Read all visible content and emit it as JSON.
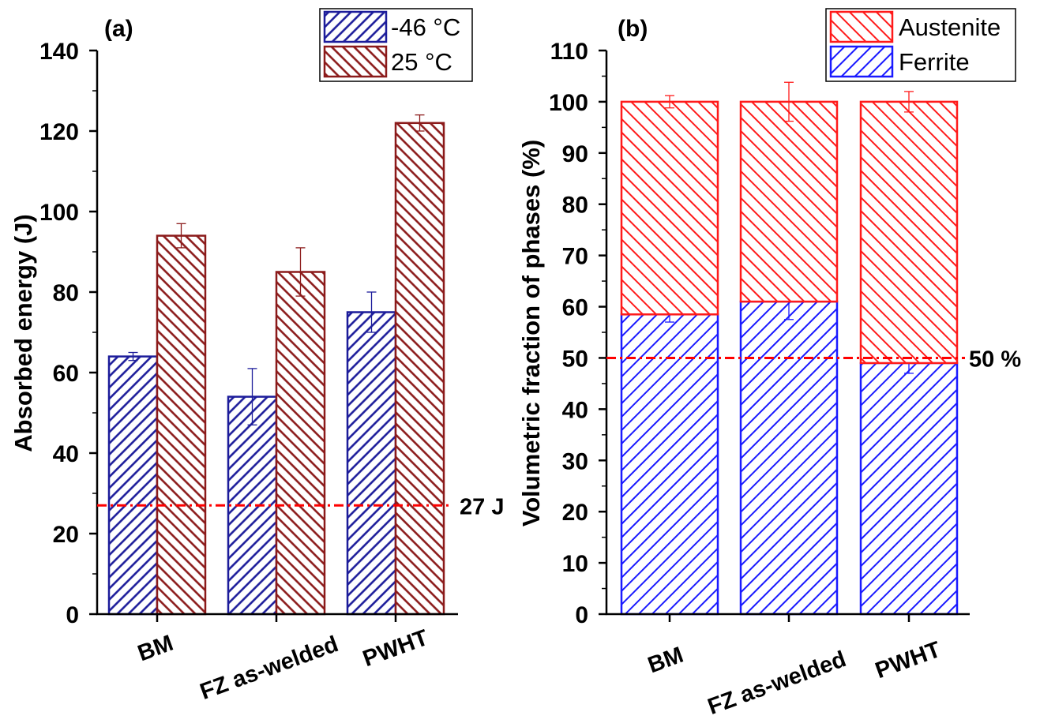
{
  "chart_data": [
    {
      "type": "bar",
      "panel_label": "(a)",
      "categories": [
        "BM",
        "FZ as-welded",
        "PWHT"
      ],
      "ylabel": "Absorbed energy (J)",
      "xlabel": "",
      "ylim": [
        0,
        140
      ],
      "yticks": [
        0,
        20,
        40,
        60,
        80,
        100,
        120,
        140
      ],
      "series": [
        {
          "name": "-46 °C",
          "values": [
            64,
            54,
            75
          ],
          "errors": [
            1,
            7,
            5
          ],
          "color": "#1c1c9a"
        },
        {
          "name": "25 °C",
          "values": [
            94,
            85,
            122
          ],
          "errors": [
            3,
            6,
            2
          ],
          "color": "#8b1a1a"
        }
      ],
      "reference_line": {
        "value": 27,
        "label": "27 J",
        "color": "#ff0000"
      },
      "legend": "top-right",
      "grid": false
    },
    {
      "type": "stacked-bar",
      "panel_label": "(b)",
      "categories": [
        "BM",
        "FZ as-welded",
        "PWHT"
      ],
      "ylabel": "Volumetric fraction of phases (%)",
      "xlabel": "",
      "ylim": [
        0,
        110
      ],
      "yticks": [
        0,
        10,
        20,
        30,
        40,
        50,
        60,
        70,
        80,
        90,
        100,
        110
      ],
      "series": [
        {
          "name": "Ferrite",
          "values": [
            58.5,
            61,
            49
          ],
          "errors": [
            1.5,
            3.5,
            2
          ],
          "color": "#1a1aff"
        },
        {
          "name": "Austenite",
          "values": [
            41.5,
            39,
            51
          ],
          "errors": [
            1.2,
            3.8,
            2
          ],
          "color": "#ff1a1a"
        }
      ],
      "legend_order": [
        "Austenite",
        "Ferrite"
      ],
      "reference_line": {
        "value": 50,
        "label": "50 %",
        "color": "#ff0000"
      },
      "legend": "top-right",
      "grid": false
    }
  ]
}
